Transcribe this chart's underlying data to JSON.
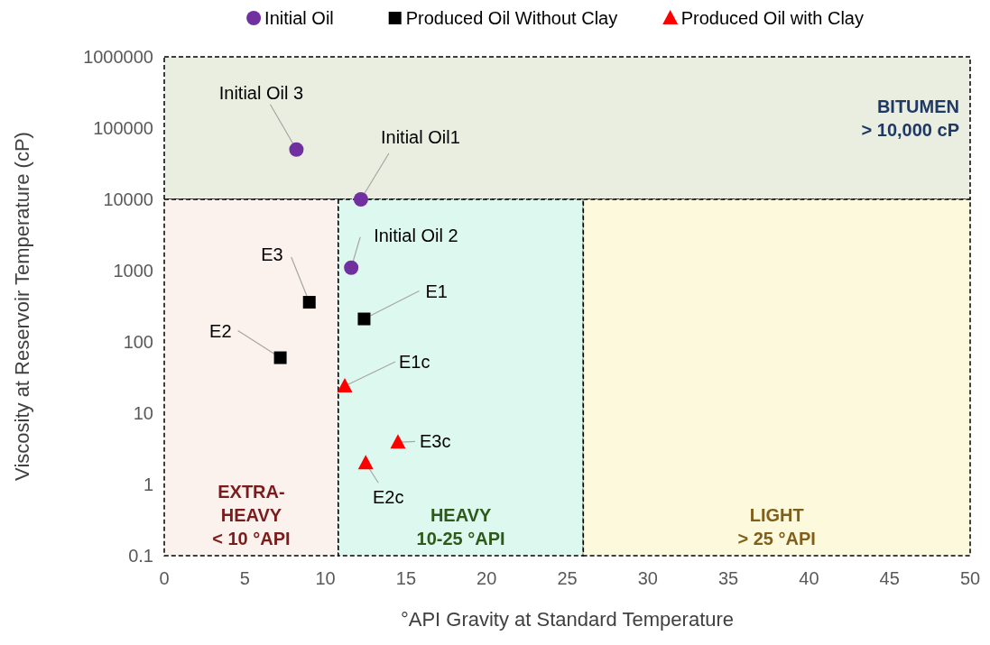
{
  "chart_data": {
    "type": "scatter",
    "xlabel": "°API Gravity at Standard Temperature",
    "ylabel": "Viscosity at Reservoir Temperature (cP)",
    "xlim": [
      0,
      50
    ],
    "xticks": [
      0,
      5,
      10,
      15,
      20,
      25,
      30,
      35,
      40,
      45,
      50
    ],
    "ylim": [
      0.1,
      1000000
    ],
    "yticks": [
      0.1,
      1,
      10,
      100,
      1000,
      10000,
      100000,
      1000000
    ],
    "log": "y",
    "grid": false,
    "legend": "top",
    "series": [
      {
        "name": "Initial Oil",
        "color": "#7030a0",
        "marker": "circle",
        "x": [
          8.2,
          12.2,
          11.6
        ],
        "values": [
          50000,
          10000,
          1100
        ]
      },
      {
        "name": "Produced Oil Without Clay",
        "color": "#000000",
        "marker": "square",
        "x": [
          9,
          12.4,
          7.2
        ],
        "values": [
          360,
          210,
          60
        ]
      },
      {
        "name": "Produced Oil with Clay",
        "color": "#ff0000",
        "marker": "triangle",
        "x": [
          11.2,
          12.5,
          14.5
        ],
        "values": [
          24,
          2,
          3.9
        ]
      }
    ],
    "bands": [
      {
        "axis": "y",
        "from": 10000,
        "to": 1000000,
        "label": "BITUMEN\n> 10,000 cP",
        "color": "#e9eee0"
      },
      {
        "axis": "x",
        "from": 0,
        "to": 10.8,
        "label": "EXTRA-\nHEAVY\n< 10 °API",
        "color": "#fbf1ed"
      },
      {
        "axis": "x",
        "from": 10.8,
        "to": 26,
        "label": "HEAVY\n10-25 °API",
        "color": "#ddf8ee"
      },
      {
        "axis": "x",
        "from": 26,
        "to": 50,
        "label": "LIGHT\n> 25 °API",
        "color": "#fcf9dd"
      }
    ],
    "annotations": [
      {
        "text": "Initial Oil 3",
        "x": 8.2,
        "y": 50000
      },
      {
        "text": "Initial Oil1",
        "x": 12.2,
        "y": 10000
      },
      {
        "text": "Initial Oil 2",
        "x": 11.6,
        "y": 1100
      },
      {
        "text": "E3",
        "x": 9,
        "y": 360
      },
      {
        "text": "E1",
        "x": 12.4,
        "y": 210
      },
      {
        "text": "E2",
        "x": 7.2,
        "y": 60
      },
      {
        "text": "E1c",
        "x": 11.2,
        "y": 24
      },
      {
        "text": "E2c",
        "x": 12.5,
        "y": 2
      },
      {
        "text": "E3c",
        "x": 14.5,
        "y": 3.9
      }
    ]
  }
}
